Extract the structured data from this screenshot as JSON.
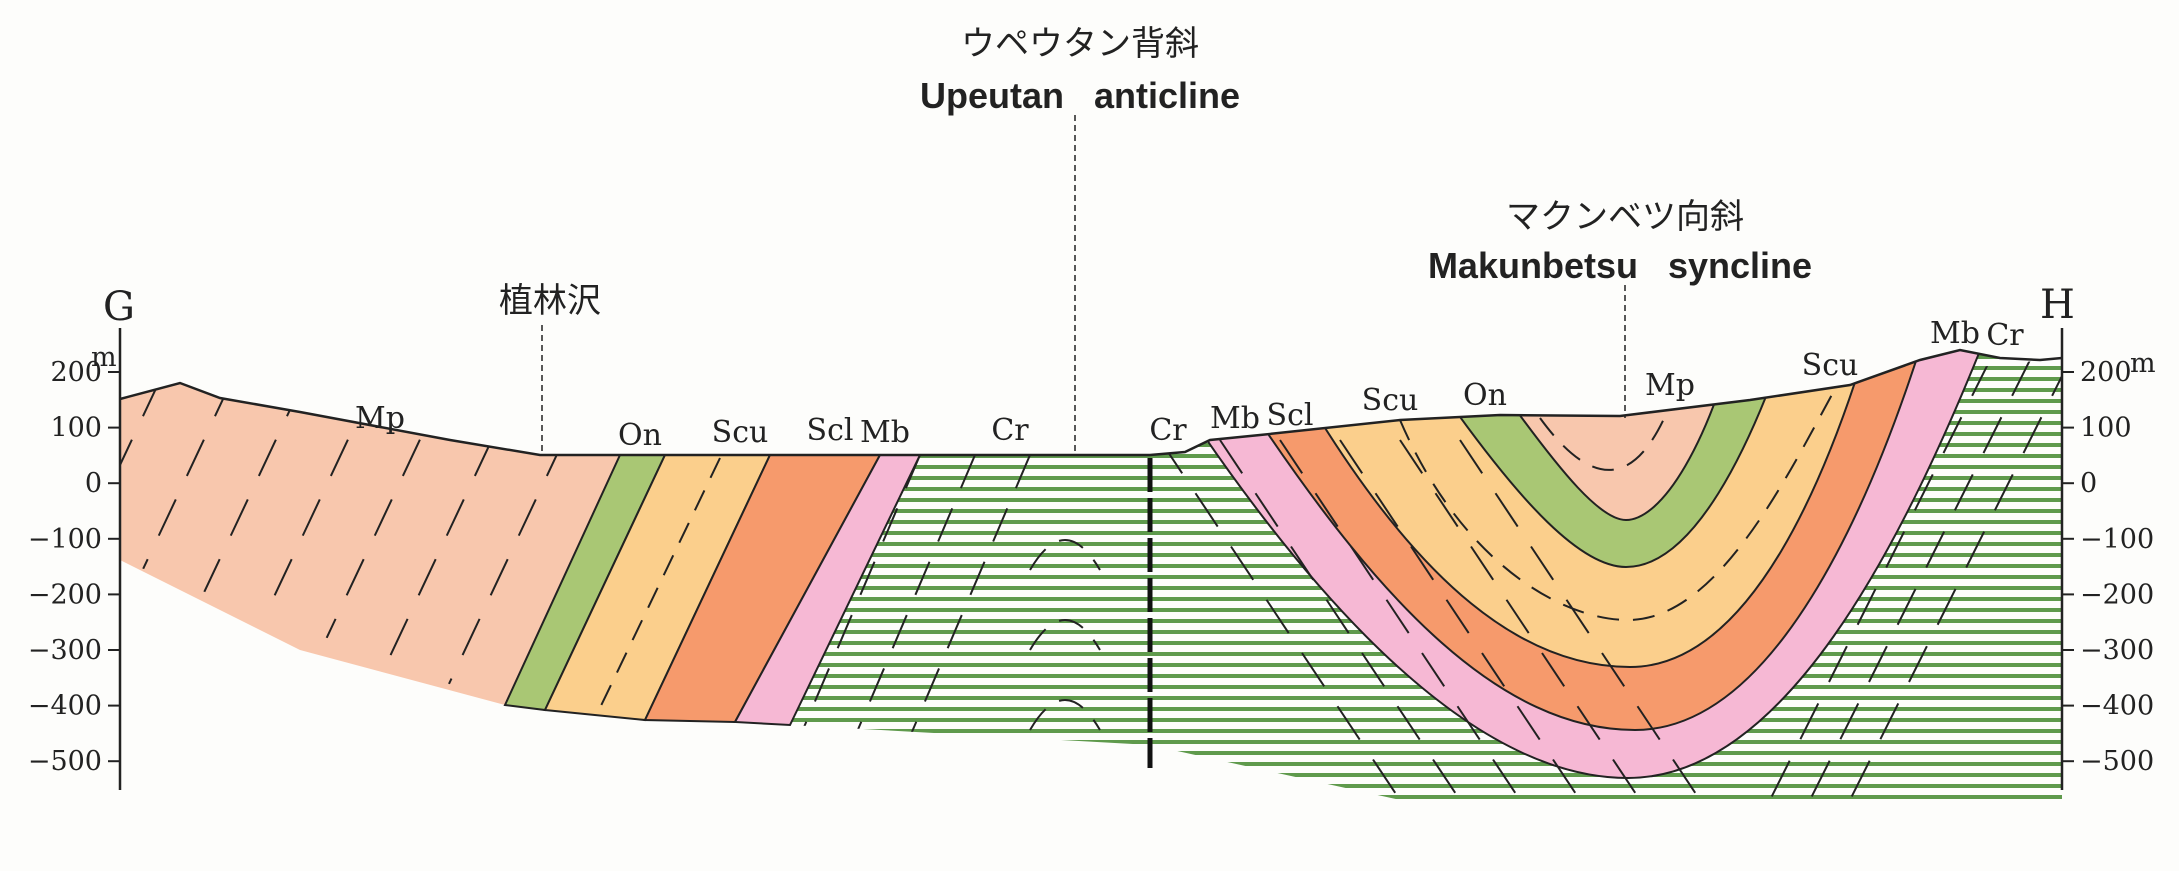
{
  "endpoints": {
    "left": "G",
    "right": "H"
  },
  "anticline": {
    "name_jp": "ウペウタン背斜",
    "name_en": "Upeutan   anticline"
  },
  "syncline": {
    "name_jp": "マクンベツ向斜",
    "name_en": "Makunbetsu   syncline"
  },
  "stream": {
    "name_jp": "植林沢"
  },
  "axis": {
    "unit": "m",
    "ticks": [
      "200",
      "100",
      "0",
      "−100",
      "−200",
      "−300",
      "−400",
      "−500"
    ]
  },
  "layer_labels": [
    "Mp",
    "On",
    "Scu",
    "Scl",
    "Mb",
    "Cr",
    "Cr",
    "Mb",
    "Scl",
    "Scu",
    "On",
    "Mp",
    "Scu",
    "Mb",
    "Cr"
  ],
  "colors": {
    "Mp": "#f8c7ad",
    "On": "#a9c774",
    "Scu": "#fbcf8c",
    "Scl": "#f69a6c",
    "Mb": "#f6b8d4",
    "Cr": "#5f9a4c"
  }
}
